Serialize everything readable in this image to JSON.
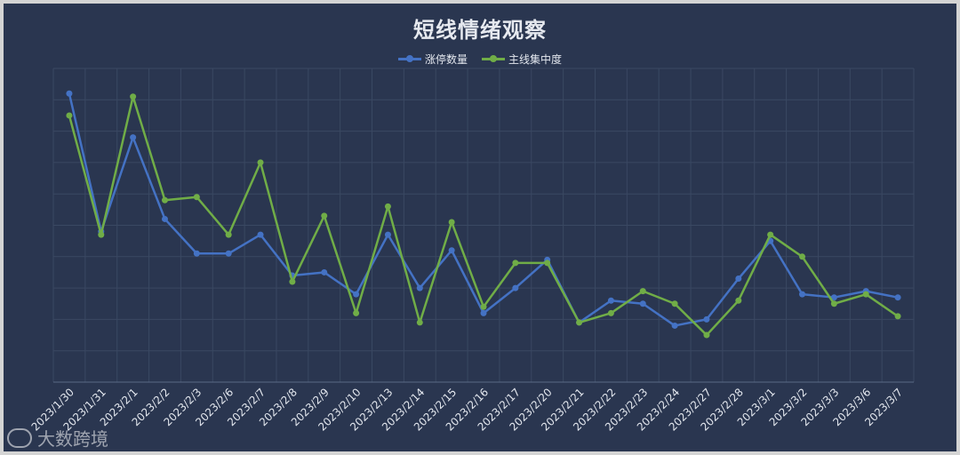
{
  "chart_data": {
    "type": "line",
    "title": "短线情绪观察",
    "categories": [
      "2023/1/30",
      "2023/1/31",
      "2023/2/1",
      "2023/2/2",
      "2023/2/3",
      "2023/2/6",
      "2023/2/7",
      "2023/2/8",
      "2023/2/9",
      "2023/2/10",
      "2023/2/13",
      "2023/2/14",
      "2023/2/15",
      "2023/2/16",
      "2023/2/17",
      "2023/2/20",
      "2023/2/21",
      "2023/2/22",
      "2023/2/23",
      "2023/2/24",
      "2023/2/27",
      "2023/2/28",
      "2023/3/1",
      "2023/3/2",
      "2023/3/3",
      "2023/3/6",
      "2023/3/7"
    ],
    "series": [
      {
        "name": "涨停数量",
        "color": "#4472c4",
        "values": [
          9.2,
          4.8,
          7.8,
          5.2,
          4.1,
          4.1,
          4.7,
          3.4,
          3.5,
          2.8,
          4.7,
          3.0,
          4.2,
          2.2,
          3.0,
          3.9,
          1.9,
          2.6,
          2.5,
          1.8,
          2.0,
          3.3,
          4.5,
          2.8,
          2.7,
          2.9,
          2.7
        ]
      },
      {
        "name": "主线集中度",
        "color": "#70ad47",
        "values": [
          8.5,
          4.7,
          9.1,
          5.8,
          5.9,
          4.7,
          7.0,
          3.2,
          5.3,
          2.2,
          5.6,
          1.9,
          5.1,
          2.4,
          3.8,
          3.8,
          1.9,
          2.2,
          2.9,
          2.5,
          1.5,
          2.6,
          4.7,
          4.0,
          2.5,
          2.8,
          2.1
        ]
      }
    ],
    "ylim": [
      0,
      10
    ],
    "grid": true,
    "legend": "top-center",
    "ytick_labels": false
  },
  "watermark": "大数跨境"
}
